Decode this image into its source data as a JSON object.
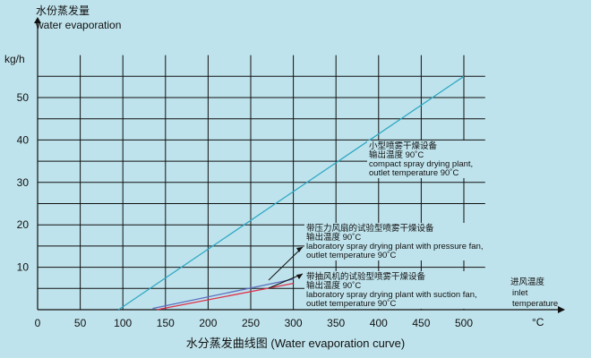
{
  "chart_data": {
    "type": "line",
    "title": "",
    "caption": "水分蒸发曲线图 (Water evaporation curve)",
    "y_title_cn": "水份蒸发量",
    "y_title_en": "water evaporation",
    "y_unit": "kg/h",
    "x_title_cn": "进风温度",
    "x_title_en_1": "inlet",
    "x_title_en_2": "temperature",
    "x_unit": "°C",
    "xlim": [
      0,
      525
    ],
    "ylim": [
      0,
      60
    ],
    "x_ticks": [
      0,
      50,
      100,
      150,
      200,
      250,
      300,
      350,
      400,
      450,
      500
    ],
    "y_ticks": [
      10,
      20,
      30,
      40,
      50
    ],
    "grid_x": [
      50,
      100,
      150,
      200,
      250,
      300,
      350,
      400,
      450,
      500
    ],
    "grid_y": [
      5,
      10,
      15,
      20,
      25,
      30,
      35,
      40,
      45,
      50,
      55
    ],
    "grid": true,
    "series": [
      {
        "name": "compact spray drying plant",
        "color": "#2fa8c4",
        "points": [
          [
            95,
            0
          ],
          [
            500,
            55
          ]
        ],
        "label": [
          "小型喷雾干燥设备",
          "输出温度 90˚C",
          "compact  spray drying plant,",
          "outlet temperature 90˚C"
        ]
      },
      {
        "name": "laboratory spray drying plant with pressure fan",
        "color": "#5c6fc0",
        "points": [
          [
            135,
            0.3
          ],
          [
            300,
            7.2
          ]
        ],
        "label": [
          "带压力风扇的试验型喷雾干燥设备",
          "输出温度 90˚C",
          "laboratory spray drying plant with pressure fan,",
          "outlet temperature 90˚C"
        ]
      },
      {
        "name": "laboratory spray drying plant with suction fan",
        "color": "#e0304a",
        "points": [
          [
            140,
            0
          ],
          [
            300,
            6.2
          ]
        ],
        "label": [
          "带抽风机的试验型喷雾干燥设备",
          "输出温度 90˚C",
          "laboratory spray drying plant with suction fan,",
          "outlet temperature 90˚C"
        ]
      }
    ]
  }
}
